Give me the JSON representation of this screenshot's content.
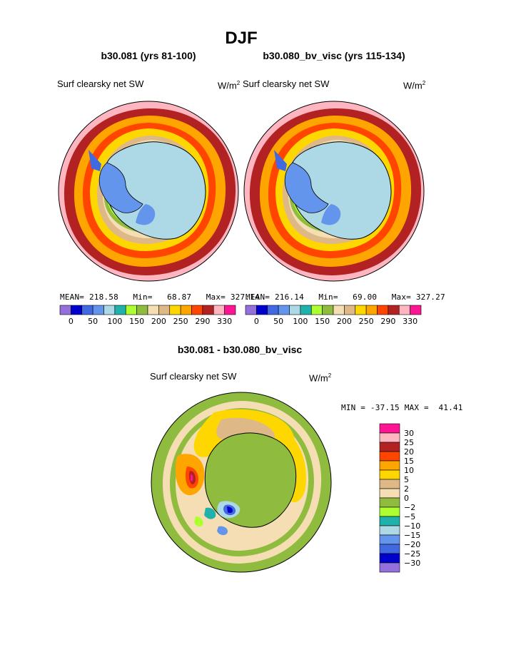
{
  "page": {
    "title": "DJF"
  },
  "panels": [
    {
      "case_title": "b30.081 (yrs 81-100)",
      "variable": "Surf clearsky net SW",
      "units": "W/m",
      "units_sup": "2",
      "stats": {
        "mean_label": "MEAN=",
        "mean": "218.58",
        "min_label": "Min=",
        "min": "68.87",
        "max_label": "Max=",
        "max": "327.14"
      }
    },
    {
      "case_title": "b30.080_bv_visc (yrs 115-134)",
      "variable": "Surf clearsky net SW",
      "units": "W/m",
      "units_sup": "2",
      "stats": {
        "mean_label": "MEAN=",
        "mean": "216.14",
        "min_label": "Min=",
        "min": "69.00",
        "max_label": "Max=",
        "max": "327.27"
      }
    },
    {
      "case_title": "b30.081 - b30.080_bv_visc",
      "variable": "Surf clearsky net SW",
      "units": "W/m",
      "units_sup": "2",
      "stats": {
        "text": "MIN = -37.15 MAX =  41.41"
      }
    }
  ],
  "chart_data": [
    {
      "type": "heatmap",
      "title": "b30.081 (yrs 81-100)",
      "variable": "Surf clearsky net SW",
      "units": "W/m2",
      "projection": "south polar stereographic",
      "summary": {
        "mean": 218.58,
        "min": 68.87,
        "max": 327.14
      },
      "colorbar": {
        "orientation": "horizontal",
        "tick_labels": [
          "0",
          "50",
          "100",
          "150",
          "200",
          "250",
          "290",
          "330"
        ],
        "colors": [
          "#9370db",
          "#0000cd",
          "#4169e1",
          "#6495ed",
          "#add8e6",
          "#20b2aa",
          "#adff2f",
          "#8fbc3f",
          "#f5deb3",
          "#deb887",
          "#ffd700",
          "#ffa500",
          "#ff4500",
          "#b22222",
          "#ffb6c1",
          "#ff1493"
        ]
      }
    },
    {
      "type": "heatmap",
      "title": "b30.080_bv_visc (yrs 115-134)",
      "variable": "Surf clearsky net SW",
      "units": "W/m2",
      "projection": "south polar stereographic",
      "summary": {
        "mean": 216.14,
        "min": 69.0,
        "max": 327.27
      },
      "colorbar": {
        "orientation": "horizontal",
        "tick_labels": [
          "0",
          "50",
          "100",
          "150",
          "200",
          "250",
          "290",
          "330"
        ],
        "colors": [
          "#9370db",
          "#0000cd",
          "#4169e1",
          "#6495ed",
          "#add8e6",
          "#20b2aa",
          "#adff2f",
          "#8fbc3f",
          "#f5deb3",
          "#deb887",
          "#ffd700",
          "#ffa500",
          "#ff4500",
          "#b22222",
          "#ffb6c1",
          "#ff1493"
        ]
      }
    },
    {
      "type": "heatmap",
      "title": "b30.081 - b30.080_bv_visc",
      "variable": "Surf clearsky net SW",
      "units": "W/m2",
      "projection": "south polar stereographic",
      "summary": {
        "min": -37.15,
        "max": 41.41
      },
      "colorbar": {
        "orientation": "vertical",
        "tick_labels": [
          "30",
          "25",
          "20",
          "15",
          "10",
          "5",
          "2",
          "0",
          "−2",
          "−5",
          "−10",
          "−15",
          "−20",
          "−25",
          "−30"
        ],
        "colors": [
          "#ff1493",
          "#ffb6c1",
          "#b22222",
          "#ff4500",
          "#ffa500",
          "#ffd700",
          "#deb887",
          "#f5deb3",
          "#8fbc3f",
          "#adff2f",
          "#20b2aa",
          "#add8e6",
          "#6495ed",
          "#4169e1",
          "#0000cd",
          "#9370db"
        ]
      }
    }
  ]
}
